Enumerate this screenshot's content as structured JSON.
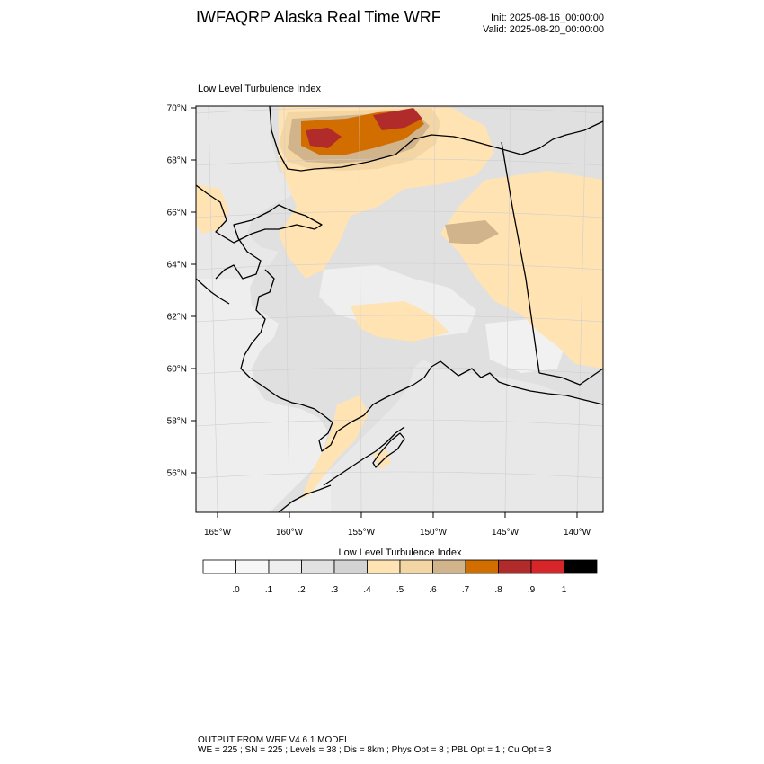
{
  "header": {
    "title": "IWFAQRP Alaska Real Time WRF",
    "init": "Init: 2025-08-16_00:00:00",
    "valid": "Valid: 2025-08-20_00:00:00"
  },
  "map": {
    "panel_title": "Low Level Turbulence Index",
    "lat_labels": [
      "70°N",
      "68°N",
      "66°N",
      "64°N",
      "62°N",
      "60°N",
      "58°N",
      "56°N"
    ],
    "lon_labels": [
      "165°W",
      "160°W",
      "155°W",
      "150°W",
      "145°W",
      "140°W"
    ],
    "latitudes": [
      70,
      68,
      66,
      64,
      62,
      60,
      58,
      56
    ],
    "longitudes": [
      -165,
      -160,
      -155,
      -150,
      -145,
      -140
    ],
    "grid": true,
    "coastline_color": "#000000"
  },
  "colorbar": {
    "title": "Low Level Turbulence Index",
    "labels": [
      ".0",
      ".1",
      ".2",
      ".3",
      ".4",
      ".5",
      ".6",
      ".7",
      ".8",
      ".9",
      "1"
    ],
    "colors": [
      "#ffffff",
      "#f7f7f7",
      "#eeeeee",
      "#e1e1e1",
      "#d3d3d3",
      "#ffe3b3",
      "#f4d6a5",
      "#d2b48c",
      "#d26d00",
      "#b22b2b",
      "#d7262a",
      "#000000"
    ]
  },
  "footer": {
    "line1": "OUTPUT FROM WRF V4.6.1 MODEL",
    "line2": "WE = 225 ; SN = 225 ; Levels = 38 ; Dis = 8km ; Phys Opt = 8 ; PBL Opt = 1 ; Cu Opt = 3"
  }
}
